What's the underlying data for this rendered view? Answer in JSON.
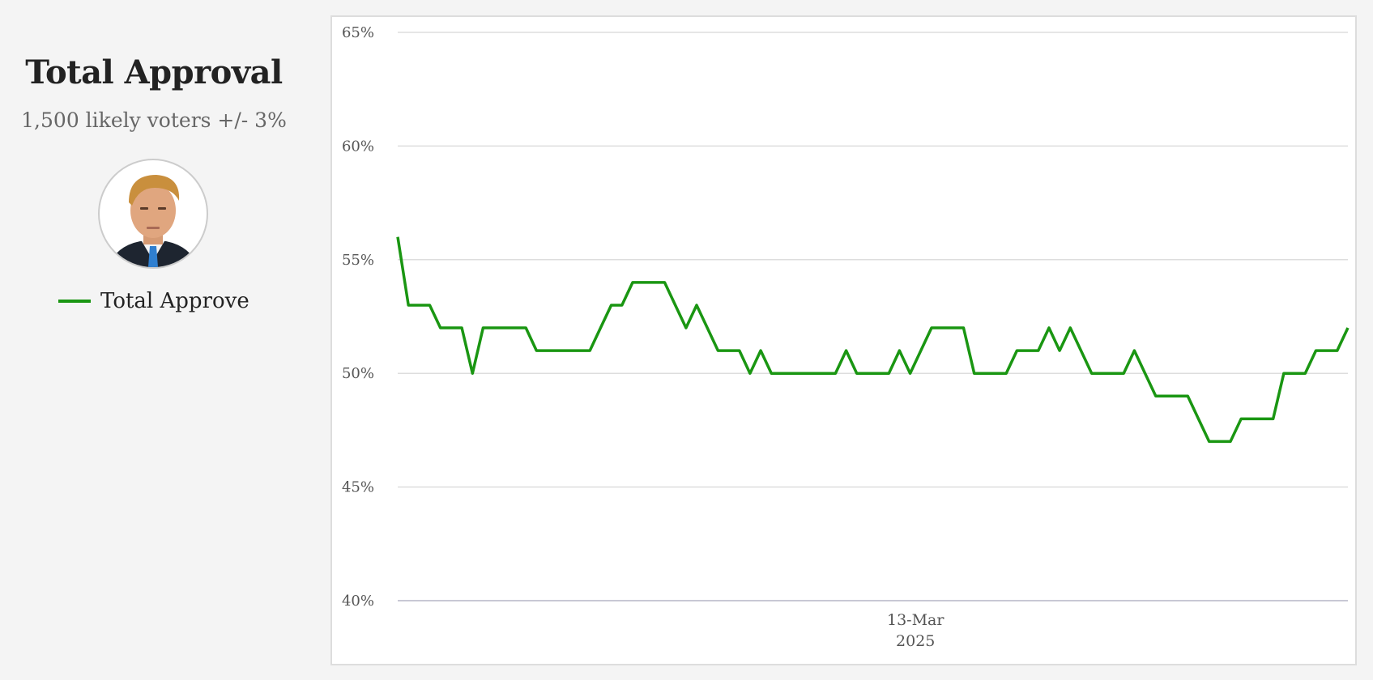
{
  "panel": {
    "title": "Total Approval",
    "subtitle": "1,500 likely voters +/- 3%",
    "avatar_icon": "portrait-photo",
    "legend_label": "Total Approve"
  },
  "colors": {
    "series": "#1a9612",
    "grid": "#dddddd",
    "axis_text": "#555555"
  },
  "chart_data": {
    "type": "line",
    "title": "",
    "xlabel": "",
    "ylabel": "",
    "ylim": [
      40,
      65
    ],
    "y_ticks": [
      "40%",
      "45%",
      "50%",
      "55%",
      "60%",
      "65%"
    ],
    "y_tick_values": [
      40,
      45,
      50,
      55,
      60,
      65
    ],
    "x_tick_labels": [
      {
        "line1": "13-Mar",
        "line2": "2025",
        "index": 48.5
      }
    ],
    "grid": true,
    "legend": "left-panel",
    "series": [
      {
        "name": "Total Approve",
        "values": [
          56,
          53,
          53,
          53,
          52,
          52,
          52,
          50,
          52,
          52,
          52,
          52,
          52,
          51,
          51,
          51,
          51,
          51,
          51,
          52,
          53,
          53,
          54,
          54,
          54,
          54,
          53,
          52,
          53,
          52,
          51,
          51,
          51,
          50,
          51,
          50,
          50,
          50,
          50,
          50,
          50,
          50,
          51,
          50,
          50,
          50,
          50,
          51,
          50,
          51,
          52,
          52,
          52,
          52,
          50,
          50,
          50,
          50,
          51,
          51,
          51,
          52,
          51,
          52,
          51,
          50,
          50,
          50,
          50,
          51,
          50,
          49,
          49,
          49,
          49,
          48,
          47,
          47,
          47,
          48,
          48,
          48,
          48,
          50,
          50,
          50,
          51,
          51,
          51,
          52
        ]
      }
    ]
  }
}
